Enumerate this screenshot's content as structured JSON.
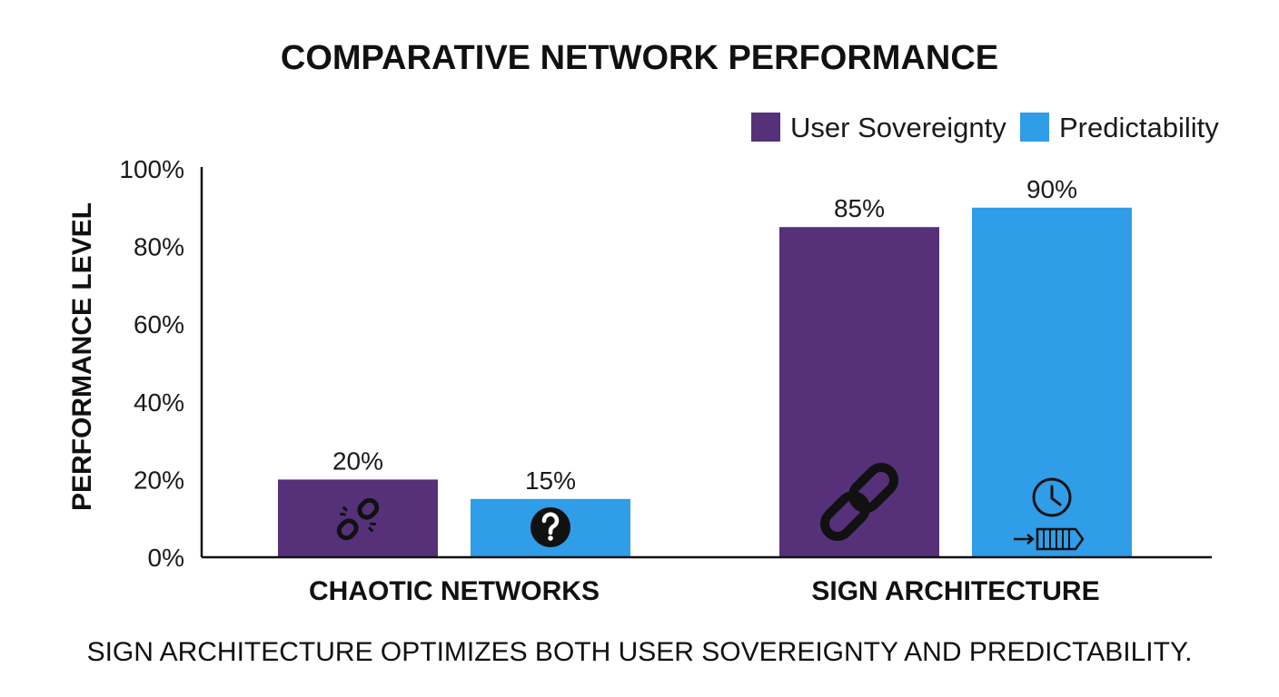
{
  "chart_data": {
    "type": "bar",
    "title": "COMPARATIVE NETWORK PERFORMANCE",
    "ylabel": "PERFORMANCE LEVEL",
    "xlabel": "",
    "categories": [
      "CHAOTIC NETWORKS",
      "SIGN ARCHITECTURE"
    ],
    "series": [
      {
        "name": "User Sovereignty",
        "color": "#56317a",
        "values": [
          20,
          85
        ],
        "value_labels": [
          "20%",
          "85%"
        ],
        "icons": [
          "broken-link-icon",
          "link-icon"
        ]
      },
      {
        "name": "Predictability",
        "color": "#2f9de8",
        "values": [
          15,
          90
        ],
        "value_labels": [
          "15%",
          "90%"
        ],
        "icons": [
          "question-icon",
          "clock-queue-icon"
        ]
      }
    ],
    "ylim": [
      0,
      100
    ],
    "yticks": [
      0,
      20,
      40,
      60,
      80,
      100
    ],
    "ytick_labels": [
      "0%",
      "20%",
      "40%",
      "60%",
      "80%",
      "100%"
    ],
    "grid": false,
    "legend_position": "top-right",
    "caption": "SIGN ARCHITECTURE OPTIMIZES BOTH USER SOVEREIGNTY AND PREDICTABILITY."
  }
}
